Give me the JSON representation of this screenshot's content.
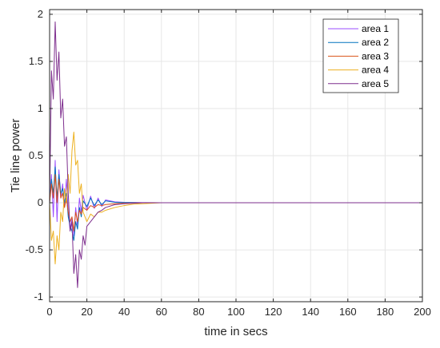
{
  "chart_data": {
    "type": "line",
    "title": "",
    "xlabel": "time in secs",
    "ylabel": "Tie line power",
    "xlim": [
      0,
      200
    ],
    "ylim": [
      -1.05,
      2.05
    ],
    "xticks": [
      0,
      20,
      40,
      60,
      80,
      100,
      120,
      140,
      160,
      180,
      200
    ],
    "yticks": [
      -1,
      -0.5,
      0,
      0.5,
      1,
      1.5,
      2
    ],
    "xtick_labels": [
      "0",
      "20",
      "40",
      "60",
      "80",
      "100",
      "120",
      "140",
      "160",
      "180",
      "200"
    ],
    "ytick_labels": [
      "-1",
      "-0.5",
      "0",
      "0.5",
      "1",
      "1.5",
      "2"
    ],
    "grid": true,
    "legend_position": "top-right",
    "series": [
      {
        "name": "area 1",
        "color": "#9b4dff",
        "x": [
          0,
          1,
          2,
          3,
          4,
          5,
          6,
          7,
          8,
          9,
          10,
          11,
          12,
          13,
          14,
          15,
          16,
          17,
          18,
          20,
          22,
          24,
          26,
          28,
          30,
          35,
          40,
          50,
          60,
          200
        ],
        "y": [
          0,
          0.3,
          -0.15,
          0.45,
          -0.2,
          0.35,
          0.05,
          0.2,
          -0.05,
          0.25,
          -0.1,
          -0.3,
          -0.15,
          -0.35,
          -0.05,
          -0.25,
          0.05,
          -0.1,
          0.08,
          -0.08,
          0.07,
          -0.06,
          0.05,
          -0.04,
          0.03,
          0.01,
          0.005,
          0.002,
          0,
          0
        ]
      },
      {
        "name": "area 2",
        "color": "#0072bd",
        "x": [
          0,
          1,
          2,
          3,
          4,
          5,
          6,
          7,
          8,
          9,
          10,
          11,
          12,
          13,
          14,
          15,
          16,
          17,
          18,
          20,
          22,
          24,
          26,
          28,
          30,
          35,
          40,
          50,
          60,
          200
        ],
        "y": [
          0,
          0.25,
          0.1,
          0.38,
          0.05,
          0.3,
          0.1,
          0.15,
          0.0,
          0.1,
          -0.15,
          -0.25,
          -0.3,
          -0.4,
          -0.2,
          -0.28,
          -0.05,
          -0.15,
          0.02,
          -0.04,
          0.05,
          -0.03,
          0.03,
          -0.02,
          0.02,
          0.005,
          0.002,
          0,
          0,
          0
        ]
      },
      {
        "name": "area 3",
        "color": "#d95319",
        "x": [
          0,
          1,
          2,
          3,
          4,
          5,
          6,
          7,
          8,
          9,
          10,
          11,
          12,
          13,
          14,
          15,
          16,
          17,
          18,
          20,
          22,
          24,
          26,
          28,
          30,
          35,
          40,
          50,
          60,
          200
        ],
        "y": [
          0,
          0.2,
          0.05,
          0.3,
          0.0,
          0.25,
          0.05,
          0.1,
          -0.05,
          0.05,
          -0.1,
          -0.2,
          -0.15,
          -0.3,
          -0.1,
          -0.2,
          -0.08,
          -0.12,
          -0.05,
          -0.08,
          -0.03,
          -0.05,
          -0.02,
          -0.03,
          -0.02,
          -0.01,
          -0.005,
          0,
          0,
          0
        ]
      },
      {
        "name": "area 4",
        "color": "#edb120",
        "x": [
          0,
          1,
          2,
          3,
          4,
          5,
          6,
          7,
          8,
          9,
          10,
          11,
          12,
          13,
          14,
          15,
          16,
          17,
          18,
          20,
          22,
          24,
          26,
          28,
          30,
          35,
          40,
          45,
          50,
          60,
          200
        ],
        "y": [
          0,
          -0.4,
          -0.3,
          -0.65,
          -0.35,
          -0.5,
          -0.1,
          -0.2,
          0.15,
          0.0,
          0.3,
          0.1,
          0.55,
          0.75,
          0.4,
          0.45,
          0.1,
          0.2,
          -0.1,
          -0.2,
          -0.12,
          -0.15,
          -0.1,
          -0.1,
          -0.08,
          -0.05,
          -0.03,
          -0.015,
          -0.01,
          0,
          0
        ]
      },
      {
        "name": "area 5",
        "color": "#7e2f8e",
        "x": [
          0,
          1,
          2,
          3,
          4,
          5,
          6,
          7,
          8,
          9,
          10,
          11,
          12,
          13,
          14,
          15,
          16,
          17,
          18,
          19,
          20,
          22,
          24,
          26,
          28,
          30,
          35,
          40,
          45,
          50,
          60,
          200
        ],
        "y": [
          0,
          1.4,
          1.1,
          1.92,
          1.3,
          1.6,
          0.9,
          1.1,
          0.6,
          0.7,
          0.1,
          -0.3,
          -0.2,
          -0.75,
          -0.55,
          -0.9,
          -0.5,
          -0.6,
          -0.35,
          -0.45,
          -0.25,
          -0.2,
          -0.15,
          -0.1,
          -0.08,
          -0.05,
          -0.02,
          -0.01,
          -0.005,
          0,
          0,
          0
        ]
      }
    ]
  }
}
